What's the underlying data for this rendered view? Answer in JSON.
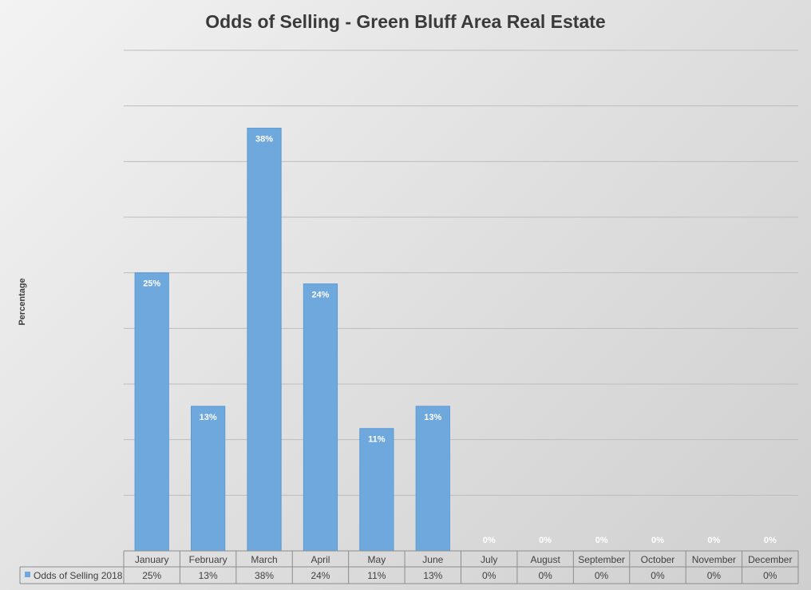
{
  "chart_data": {
    "type": "bar",
    "title": "Odds of Selling - Green Bluff Area Real Estate",
    "ylabel": "Percentage",
    "xlabel": "",
    "ylim": [
      0,
      45
    ],
    "grid": true,
    "legend": "data-table-left",
    "categories": [
      "January",
      "February",
      "March",
      "April",
      "May",
      "June",
      "July",
      "August",
      "September",
      "October",
      "November",
      "December"
    ],
    "series": [
      {
        "name": "Odds of Selling 2018",
        "values": [
          25,
          13,
          38,
          24,
          11,
          13,
          0,
          0,
          0,
          0,
          0,
          0
        ],
        "labels": [
          "25%",
          "13%",
          "38%",
          "24%",
          "11%",
          "13%",
          "0%",
          "0%",
          "0%",
          "0%",
          "0%",
          "0%"
        ],
        "color": "#6fa8dc"
      }
    ]
  }
}
